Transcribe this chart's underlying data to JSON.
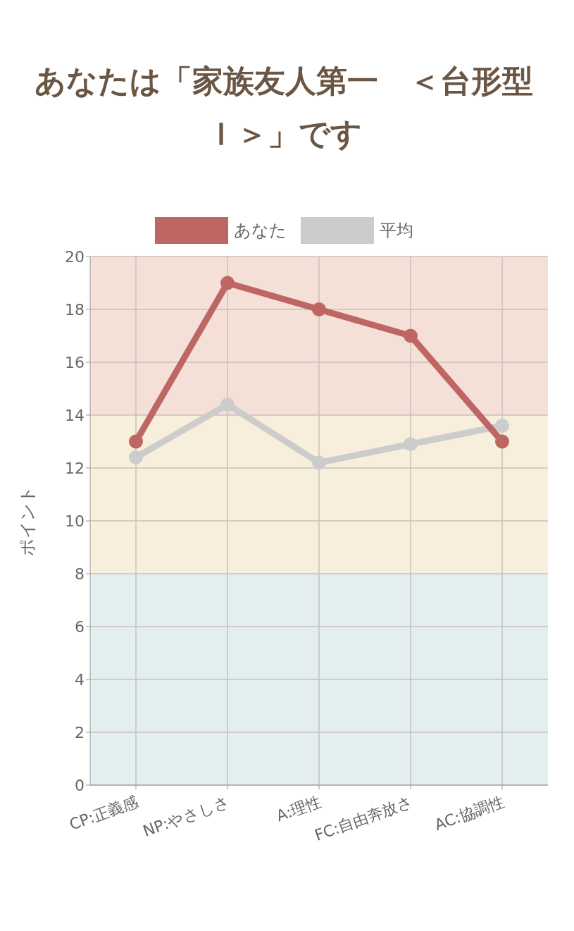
{
  "chart_data": {
    "type": "line",
    "title": "あなたは「家族友人第一　＜台形型Ｉ＞」です",
    "ylabel": "ポイント",
    "categories": [
      "CP:正義感",
      "NP:やさしさ",
      "A:理性",
      "FC:自由奔放さ",
      "AC:協調性"
    ],
    "series": [
      {
        "name": "あなた",
        "color": "#bd6663",
        "values": [
          13,
          19,
          18,
          17,
          13
        ]
      },
      {
        "name": "平均",
        "color": "#cccccc",
        "values": [
          12.4,
          14.4,
          12.2,
          12.9,
          13.6
        ]
      }
    ],
    "ylim": [
      0,
      20
    ],
    "yticks": [
      0,
      2,
      4,
      6,
      8,
      10,
      12,
      14,
      16,
      18,
      20
    ],
    "bands": [
      {
        "axis": "y",
        "from": 0,
        "to": 8,
        "color": "#e3eef0"
      },
      {
        "axis": "y",
        "from": 8,
        "to": 14,
        "color": "#f7efdc"
      },
      {
        "axis": "y",
        "from": 14,
        "to": 20,
        "color": "#f5e0d7"
      }
    ],
    "grid": true,
    "legend": "top",
    "marker": "circle",
    "line_style": "solid"
  }
}
